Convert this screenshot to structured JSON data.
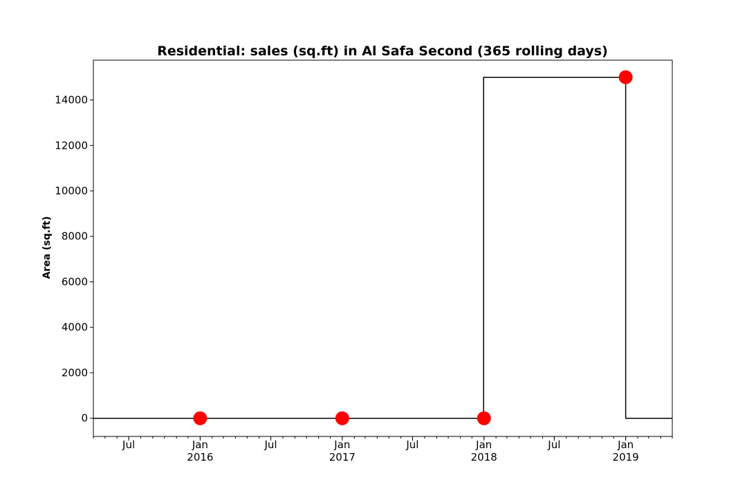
{
  "chart_data": {
    "type": "line",
    "title": "Residential: sales (sq.ft) in Al Safa Second (365 rolling days)",
    "xlabel": "",
    "ylabel": "Area (sq.ft)",
    "ylim": [
      -800,
      15750
    ],
    "xlim": [
      "2015-04-01",
      "2019-05-01"
    ],
    "grid": false,
    "legend": "none",
    "y_ticks": [
      0,
      2000,
      4000,
      6000,
      8000,
      10000,
      12000,
      14000
    ],
    "x_ticks": [
      {
        "date": "2015-07-01",
        "label": "Jul",
        "sub": ""
      },
      {
        "date": "2016-01-01",
        "label": "Jan",
        "sub": "2016"
      },
      {
        "date": "2016-07-01",
        "label": "Jul",
        "sub": ""
      },
      {
        "date": "2017-01-01",
        "label": "Jan",
        "sub": "2017"
      },
      {
        "date": "2017-07-01",
        "label": "Jul",
        "sub": ""
      },
      {
        "date": "2018-01-01",
        "label": "Jan",
        "sub": "2018"
      },
      {
        "date": "2018-07-01",
        "label": "Jul",
        "sub": ""
      },
      {
        "date": "2019-01-01",
        "label": "Jan",
        "sub": "2019"
      }
    ],
    "series": [
      {
        "style": "step-line",
        "color": "#000000",
        "x": [
          "2015-04-01",
          "2017-12-31",
          "2017-12-31",
          "2019-01-01",
          "2019-01-01",
          "2019-05-01"
        ],
        "y": [
          0,
          0,
          15000,
          15000,
          0,
          0
        ]
      },
      {
        "style": "markers",
        "color": "#ff0000",
        "x": [
          "2016-01-01",
          "2017-01-01",
          "2018-01-01",
          "2019-01-01"
        ],
        "y": [
          0,
          0,
          0,
          15000
        ]
      }
    ]
  }
}
